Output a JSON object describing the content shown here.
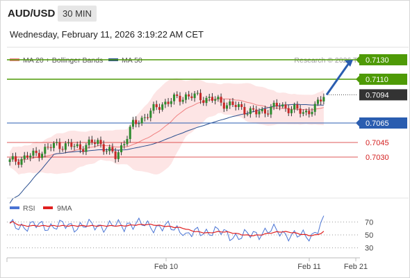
{
  "header": {
    "symbol": "AUD/USD",
    "interval": "30 MIN",
    "datetime": "Wednesday, February 11, 2026 3:19:22 AM CET"
  },
  "legend": {
    "ma20_label": "MA 20 + Bollinger Bands",
    "ma50_label": "MA 50",
    "copyright": "Research © 2026 Trading Central",
    "ma20_color": "#f08080",
    "ma50_color": "#2a4f8f"
  },
  "chart_data": [
    {
      "type": "line",
      "title": "",
      "y_axis_side": "right",
      "ylim": [
        0.699,
        0.714
      ],
      "x_ticks": [
        "Feb 10",
        "Feb 11",
        "Feb 21"
      ],
      "price_levels": [
        {
          "value": "0.7130",
          "style": "resistance",
          "color": "#4e9a06"
        },
        {
          "value": "0.7110",
          "style": "resistance",
          "color": "#4e9a06"
        },
        {
          "value": "0.7094",
          "style": "last",
          "color": "#333333"
        },
        {
          "value": "0.7065",
          "style": "pivot",
          "color": "#2a5db0"
        },
        {
          "value": "0.7045",
          "style": "support",
          "color": "#d42020"
        },
        {
          "value": "0.7030",
          "style": "support",
          "color": "#d42020"
        }
      ],
      "target_arrow": {
        "from": 0.7094,
        "to": 0.713,
        "color": "#2a5db0"
      },
      "series": [
        {
          "name": "MA 20 + Bollinger Bands",
          "color": "#f08080"
        },
        {
          "name": "MA 50",
          "color": "#2a4f8f"
        }
      ]
    },
    {
      "type": "line",
      "title": "",
      "ylim": [
        20,
        80
      ],
      "y_ticks": [
        "70",
        "50",
        "30"
      ],
      "series": [
        {
          "name": "RSI",
          "color": "#4a74d4"
        },
        {
          "name": "9MA",
          "color": "#e02020"
        }
      ]
    }
  ]
}
